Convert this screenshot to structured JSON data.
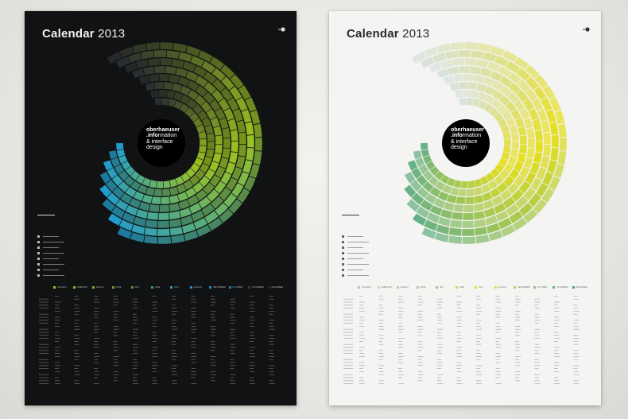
{
  "posters": [
    {
      "id": "dark",
      "title_main": "Calendar",
      "title_year": "2013",
      "center_lines": [
        "oberhaeuser",
        ".info",
        "rmation",
        "& interface",
        "design"
      ],
      "colors": {
        "bg": "#111213",
        "accent1": "#9cc21f",
        "accent2": "#1a9ad6",
        "ink": "#f0f0f0"
      }
    },
    {
      "id": "light",
      "title_main": "Calendar",
      "title_year": "2013",
      "center_lines": [
        "oberhaeuser",
        ".info",
        "rmation",
        "& interface",
        "design"
      ],
      "colors": {
        "bg": "#f4f4f2",
        "accent1": "#e6df1c",
        "accent2": "#5fae8e",
        "ink": "#2a2a2a"
      }
    }
  ],
  "months": [
    "JANUARY",
    "FEBRUARY",
    "MARCH",
    "APRIL",
    "MAY",
    "JUNE",
    "JULY",
    "AUGUST",
    "SEPTEMBER",
    "OCTOBER",
    "NOVEMBER",
    "DECEMBER"
  ]
}
